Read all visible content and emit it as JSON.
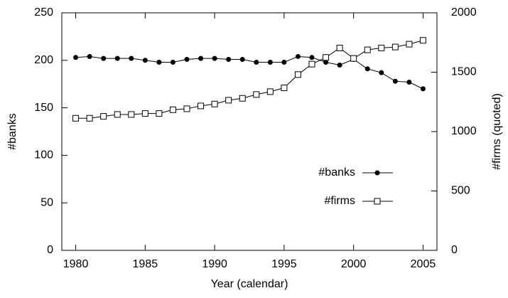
{
  "chart_data": {
    "type": "line",
    "x": [
      1980,
      1981,
      1982,
      1983,
      1984,
      1985,
      1986,
      1987,
      1988,
      1989,
      1990,
      1991,
      1992,
      1993,
      1994,
      1995,
      1996,
      1997,
      1998,
      1999,
      2000,
      2001,
      2002,
      2003,
      2004,
      2005
    ],
    "xlabel": "Year (calendar)",
    "ylabel": "#banks",
    "y2label": "#firms (quoted)",
    "xlim": [
      1979,
      2006
    ],
    "xticks": [
      1980,
      1985,
      1990,
      1995,
      2000,
      2005
    ],
    "ylim": [
      0,
      250
    ],
    "yticks": [
      0,
      50,
      100,
      150,
      200,
      250
    ],
    "y2lim": [
      0,
      2000
    ],
    "y2ticks": [
      0,
      500,
      1000,
      1500,
      2000
    ],
    "series": [
      {
        "name": "#banks",
        "color": "#000000",
        "marker": "filled-circle",
        "values": [
          203,
          204,
          202,
          202,
          202,
          200,
          198,
          198,
          201,
          202,
          202,
          201,
          201,
          198,
          198,
          198,
          204,
          203,
          198,
          195,
          201,
          191,
          187,
          178,
          177,
          170
        ]
      },
      {
        "name": "#firms",
        "color": "#000000",
        "marker": "open-square",
        "axis": "y2",
        "values": [
          1112,
          1112,
          1128,
          1144,
          1144,
          1152,
          1152,
          1184,
          1192,
          1216,
          1232,
          1264,
          1280,
          1312,
          1336,
          1368,
          1480,
          1568,
          1624,
          1704,
          1616,
          1688,
          1704,
          1712,
          1736,
          1768
        ]
      }
    ]
  }
}
